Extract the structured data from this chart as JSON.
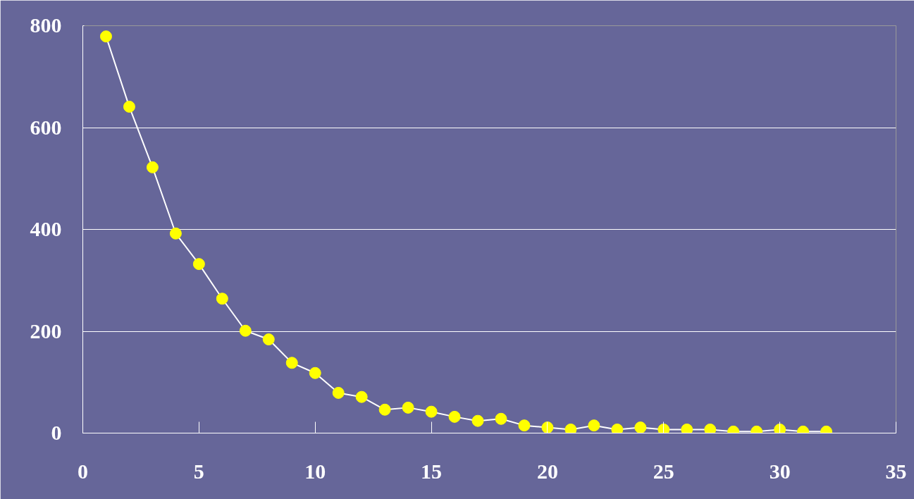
{
  "chart_data": {
    "type": "line",
    "x": [
      1,
      2,
      3,
      4,
      5,
      6,
      7,
      8,
      9,
      10,
      11,
      12,
      13,
      14,
      15,
      16,
      17,
      18,
      19,
      20,
      21,
      22,
      23,
      24,
      25,
      26,
      27,
      28,
      29,
      30,
      31,
      32
    ],
    "series": [
      {
        "color": "#ffff00",
        "values": [
          779,
          641,
          522,
          392,
          332,
          264,
          201,
          184,
          138,
          118,
          79,
          71,
          46,
          50,
          42,
          32,
          24,
          28,
          15,
          11,
          7,
          15,
          7,
          11,
          7,
          7,
          7,
          3,
          3,
          7,
          3,
          3
        ]
      }
    ],
    "xlim": [
      0,
      35
    ],
    "xticks": [
      0,
      5,
      10,
      15,
      20,
      25,
      30,
      35
    ],
    "ylim": [
      0,
      800
    ],
    "yticks": [
      0,
      200,
      400,
      600,
      800
    ],
    "grid": "y",
    "marker": "circle",
    "line_style": "solid"
  }
}
